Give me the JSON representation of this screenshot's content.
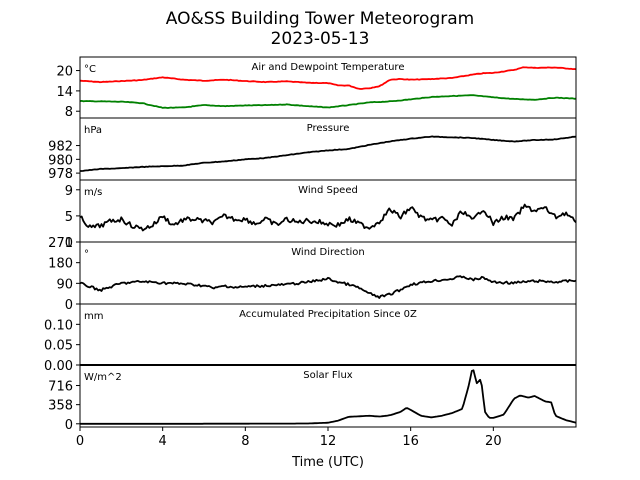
{
  "chart_data": {
    "type": "line",
    "title": "AO&SS Building Tower Meteorogram",
    "subtitle": "2023-05-13",
    "xlabel": "Time (UTC)",
    "xlim": [
      0,
      24
    ],
    "x_ticks": [
      0,
      4,
      8,
      12,
      16,
      20
    ],
    "panels": [
      {
        "id": "temperature",
        "label": "Air and Dewpoint Temperature",
        "unit": "°C",
        "ylim": [
          6,
          24
        ],
        "y_ticks": [
          8,
          14,
          20
        ],
        "series": [
          {
            "color": "#ff0000",
            "x": [
              0,
              1,
              2,
              3,
              4,
              5,
              6,
              7,
              8,
              9,
              10,
              11,
              12,
              12.5,
              13,
              13.5,
              14,
              14.5,
              15,
              15.5,
              16,
              17,
              18,
              19,
              19.5,
              20,
              21,
              21.5,
              22,
              23,
              24
            ],
            "y": [
              17,
              16.6,
              16.9,
              17.2,
              18,
              17.3,
              17,
              17.3,
              16.9,
              16.6,
              16.8,
              16.4,
              16.3,
              15.6,
              15.6,
              14.6,
              14.8,
              15.4,
              17.3,
              17.5,
              17.3,
              17.5,
              17.8,
              18.8,
              19.2,
              19.3,
              20.2,
              21,
              20.8,
              20.9,
              20.4
            ]
          },
          {
            "color": "#008000",
            "x": [
              0,
              1,
              2,
              3,
              4,
              5,
              6,
              7,
              8,
              9,
              10,
              11,
              12,
              13,
              14,
              15,
              16,
              17,
              18,
              19,
              20,
              21,
              22,
              23,
              24
            ],
            "y": [
              11,
              10.9,
              10.8,
              10.4,
              9,
              9.1,
              9.8,
              9.5,
              9.7,
              9.8,
              10,
              9.5,
              9.1,
              9.8,
              10.6,
              10.9,
              11.5,
              12.2,
              12.5,
              12.7,
              12.1,
              11.6,
              11.4,
              12,
              11.7
            ]
          }
        ]
      },
      {
        "id": "pressure",
        "label": "Pressure",
        "unit": "hPa",
        "ylim": [
          977,
          986
        ],
        "y_ticks": [
          978,
          980,
          982
        ],
        "series": [
          {
            "color": "#000000",
            "x": [
              0,
              1,
              2,
              3,
              4,
              5,
              6,
              7,
              8,
              9,
              10,
              11,
              12,
              13,
              14,
              15,
              16,
              17,
              18,
              19,
              20,
              21,
              22,
              23,
              24
            ],
            "y": [
              978.3,
              978.6,
              978.7,
              978.9,
              979,
              979.1,
              979.5,
              979.7,
              980,
              980.2,
              980.6,
              981,
              981.3,
              981.5,
              982.1,
              982.6,
              983,
              983.3,
              983.2,
              983.1,
              982.8,
              982.6,
              982.8,
              982.9,
              983.3
            ]
          }
        ]
      },
      {
        "id": "wind_speed",
        "label": "Wind Speed",
        "unit": "m/s",
        "ylim": [
          1,
          10.5
        ],
        "y_ticks": [
          1,
          5,
          9
        ],
        "series": [
          {
            "color": "#000000",
            "x": [
              0,
              0.5,
              1,
              1.5,
              2,
              2.5,
              3,
              3.5,
              4,
              4.5,
              5,
              5.5,
              6,
              6.5,
              7,
              7.5,
              8,
              8.5,
              9,
              9.5,
              10,
              10.5,
              11,
              11.5,
              12,
              12.5,
              13,
              13.5,
              14,
              14.5,
              15,
              15.5,
              16,
              16.5,
              17,
              17.5,
              18,
              18.5,
              19,
              19.5,
              20,
              20.5,
              21,
              21.5,
              22,
              22.5,
              23,
              23.5,
              24
            ],
            "y": [
              4.8,
              3.2,
              3.5,
              4.2,
              4.5,
              3.5,
              3,
              3.5,
              5,
              3.6,
              4.4,
              4.5,
              4.2,
              4,
              5,
              4.5,
              4.5,
              3.8,
              4.5,
              3.6,
              4.5,
              4,
              4.3,
              4.1,
              3.8,
              3.6,
              4.5,
              3.8,
              3.2,
              4.2,
              6,
              4.8,
              6.3,
              4.8,
              4.2,
              4.7,
              3.6,
              5.8,
              4.2,
              6.2,
              3.8,
              4.8,
              4.5,
              6.5,
              5.8,
              6.2,
              4.8,
              5.5,
              4
            ]
          }
        ]
      },
      {
        "id": "wind_direction",
        "label": "Wind Direction",
        "unit": "°",
        "ylim": [
          0,
          270
        ],
        "y_ticks": [
          0,
          90,
          180,
          270
        ],
        "series": [
          {
            "color": "#000000",
            "x": [
              0,
              0.5,
              1,
              1.5,
              2,
              3,
              4,
              5,
              6,
              6.5,
              7,
              7.5,
              8,
              9,
              10,
              11,
              12,
              12.5,
              13,
              13.5,
              14,
              14.5,
              15,
              15.5,
              16,
              17,
              18,
              18.5,
              19,
              19.5,
              20,
              21,
              22,
              23,
              24
            ],
            "y": [
              90,
              75,
              60,
              75,
              90,
              98,
              92,
              88,
              80,
              68,
              80,
              72,
              75,
              80,
              85,
              95,
              110,
              95,
              85,
              70,
              45,
              30,
              42,
              62,
              85,
              100,
              110,
              120,
              105,
              115,
              95,
              92,
              100,
              96,
              102
            ]
          }
        ]
      },
      {
        "id": "precipitation",
        "label": "Accumulated Precipitation Since 0Z",
        "unit": "mm",
        "ylim": [
          0,
          0.15
        ],
        "y_ticks": [
          0.0,
          0.05,
          0.1
        ],
        "y_tick_labels": [
          "0.00",
          "0.05",
          "0.10"
        ],
        "series": [
          {
            "color": "#000000",
            "x": [
              0,
              24
            ],
            "y": [
              0,
              0
            ]
          }
        ]
      },
      {
        "id": "solar_flux",
        "label": "Solar Flux",
        "unit": "W/m^2",
        "ylim": [
          -60,
          1100
        ],
        "y_ticks": [
          0,
          358,
          716
        ],
        "series": [
          {
            "color": "#000000",
            "x": [
              0,
              5,
              11,
              12,
              12.5,
              13,
              13.5,
              14,
              14.5,
              15,
              15.5,
              15.8,
              16,
              16.5,
              17,
              17.5,
              18,
              18.5,
              18.8,
              19,
              19.2,
              19.4,
              19.6,
              19.8,
              20,
              20.5,
              21,
              21.3,
              21.7,
              22,
              22.5,
              22.8,
              23,
              23.5,
              24
            ],
            "y": [
              0,
              0,
              5,
              20,
              60,
              130,
              140,
              150,
              135,
              160,
              220,
              300,
              260,
              150,
              120,
              150,
              200,
              280,
              700,
              1060,
              760,
              840,
              220,
              110,
              110,
              170,
              470,
              530,
              490,
              520,
              420,
              400,
              150,
              70,
              20
            ]
          }
        ]
      }
    ]
  }
}
